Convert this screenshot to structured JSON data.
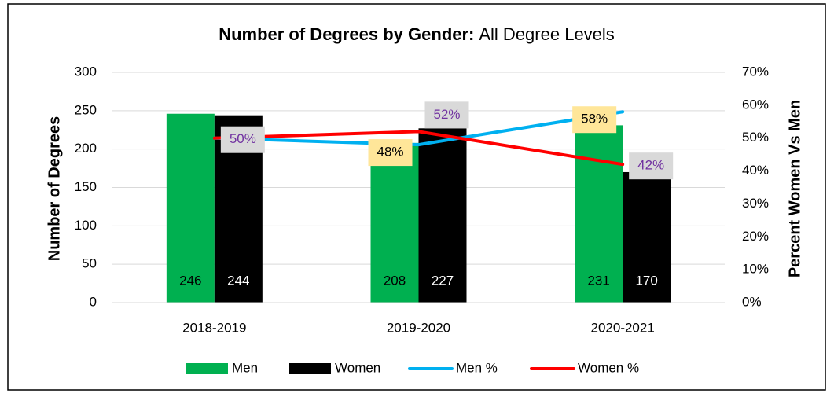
{
  "chart_data": {
    "type": "bar",
    "title": "Number of Degrees by Gender:",
    "subtitle": "All Degree Levels",
    "y_label": "Number of Degrees",
    "y2_label": "Percent Women Vs Men",
    "categories": [
      "2018-2019",
      "2019-2020",
      "2020-2021"
    ],
    "series": [
      {
        "name": "Men",
        "type": "bar",
        "color": "#00b050",
        "values": [
          246,
          208,
          231
        ]
      },
      {
        "name": "Women",
        "type": "bar",
        "color": "#000000",
        "values": [
          244,
          227,
          170
        ]
      },
      {
        "name": "Men %",
        "type": "line",
        "axis": "y2",
        "color": "#00b0f0",
        "values": [
          50,
          48,
          58
        ],
        "value_labels": [
          null,
          "48%",
          "58%"
        ]
      },
      {
        "name": "Women %",
        "type": "line",
        "axis": "y2",
        "color": "#ff0000",
        "values": [
          50,
          52,
          42
        ],
        "value_labels": [
          "50%",
          "52%",
          "42%"
        ]
      }
    ],
    "ylim": [
      0,
      300
    ],
    "yticks": [
      0,
      50,
      100,
      150,
      200,
      250,
      300
    ],
    "y2lim": [
      0,
      70
    ],
    "y2ticks": [
      {
        "value": 0,
        "label": "0%"
      },
      {
        "value": 10,
        "label": "10%"
      },
      {
        "value": 20,
        "label": "20%"
      },
      {
        "value": 30,
        "label": "30%"
      },
      {
        "value": 40,
        "label": "40%"
      },
      {
        "value": 50,
        "label": "50%"
      },
      {
        "value": 60,
        "label": "60%"
      },
      {
        "value": 70,
        "label": "70%"
      }
    ],
    "grid": true,
    "legend": "bottom"
  }
}
